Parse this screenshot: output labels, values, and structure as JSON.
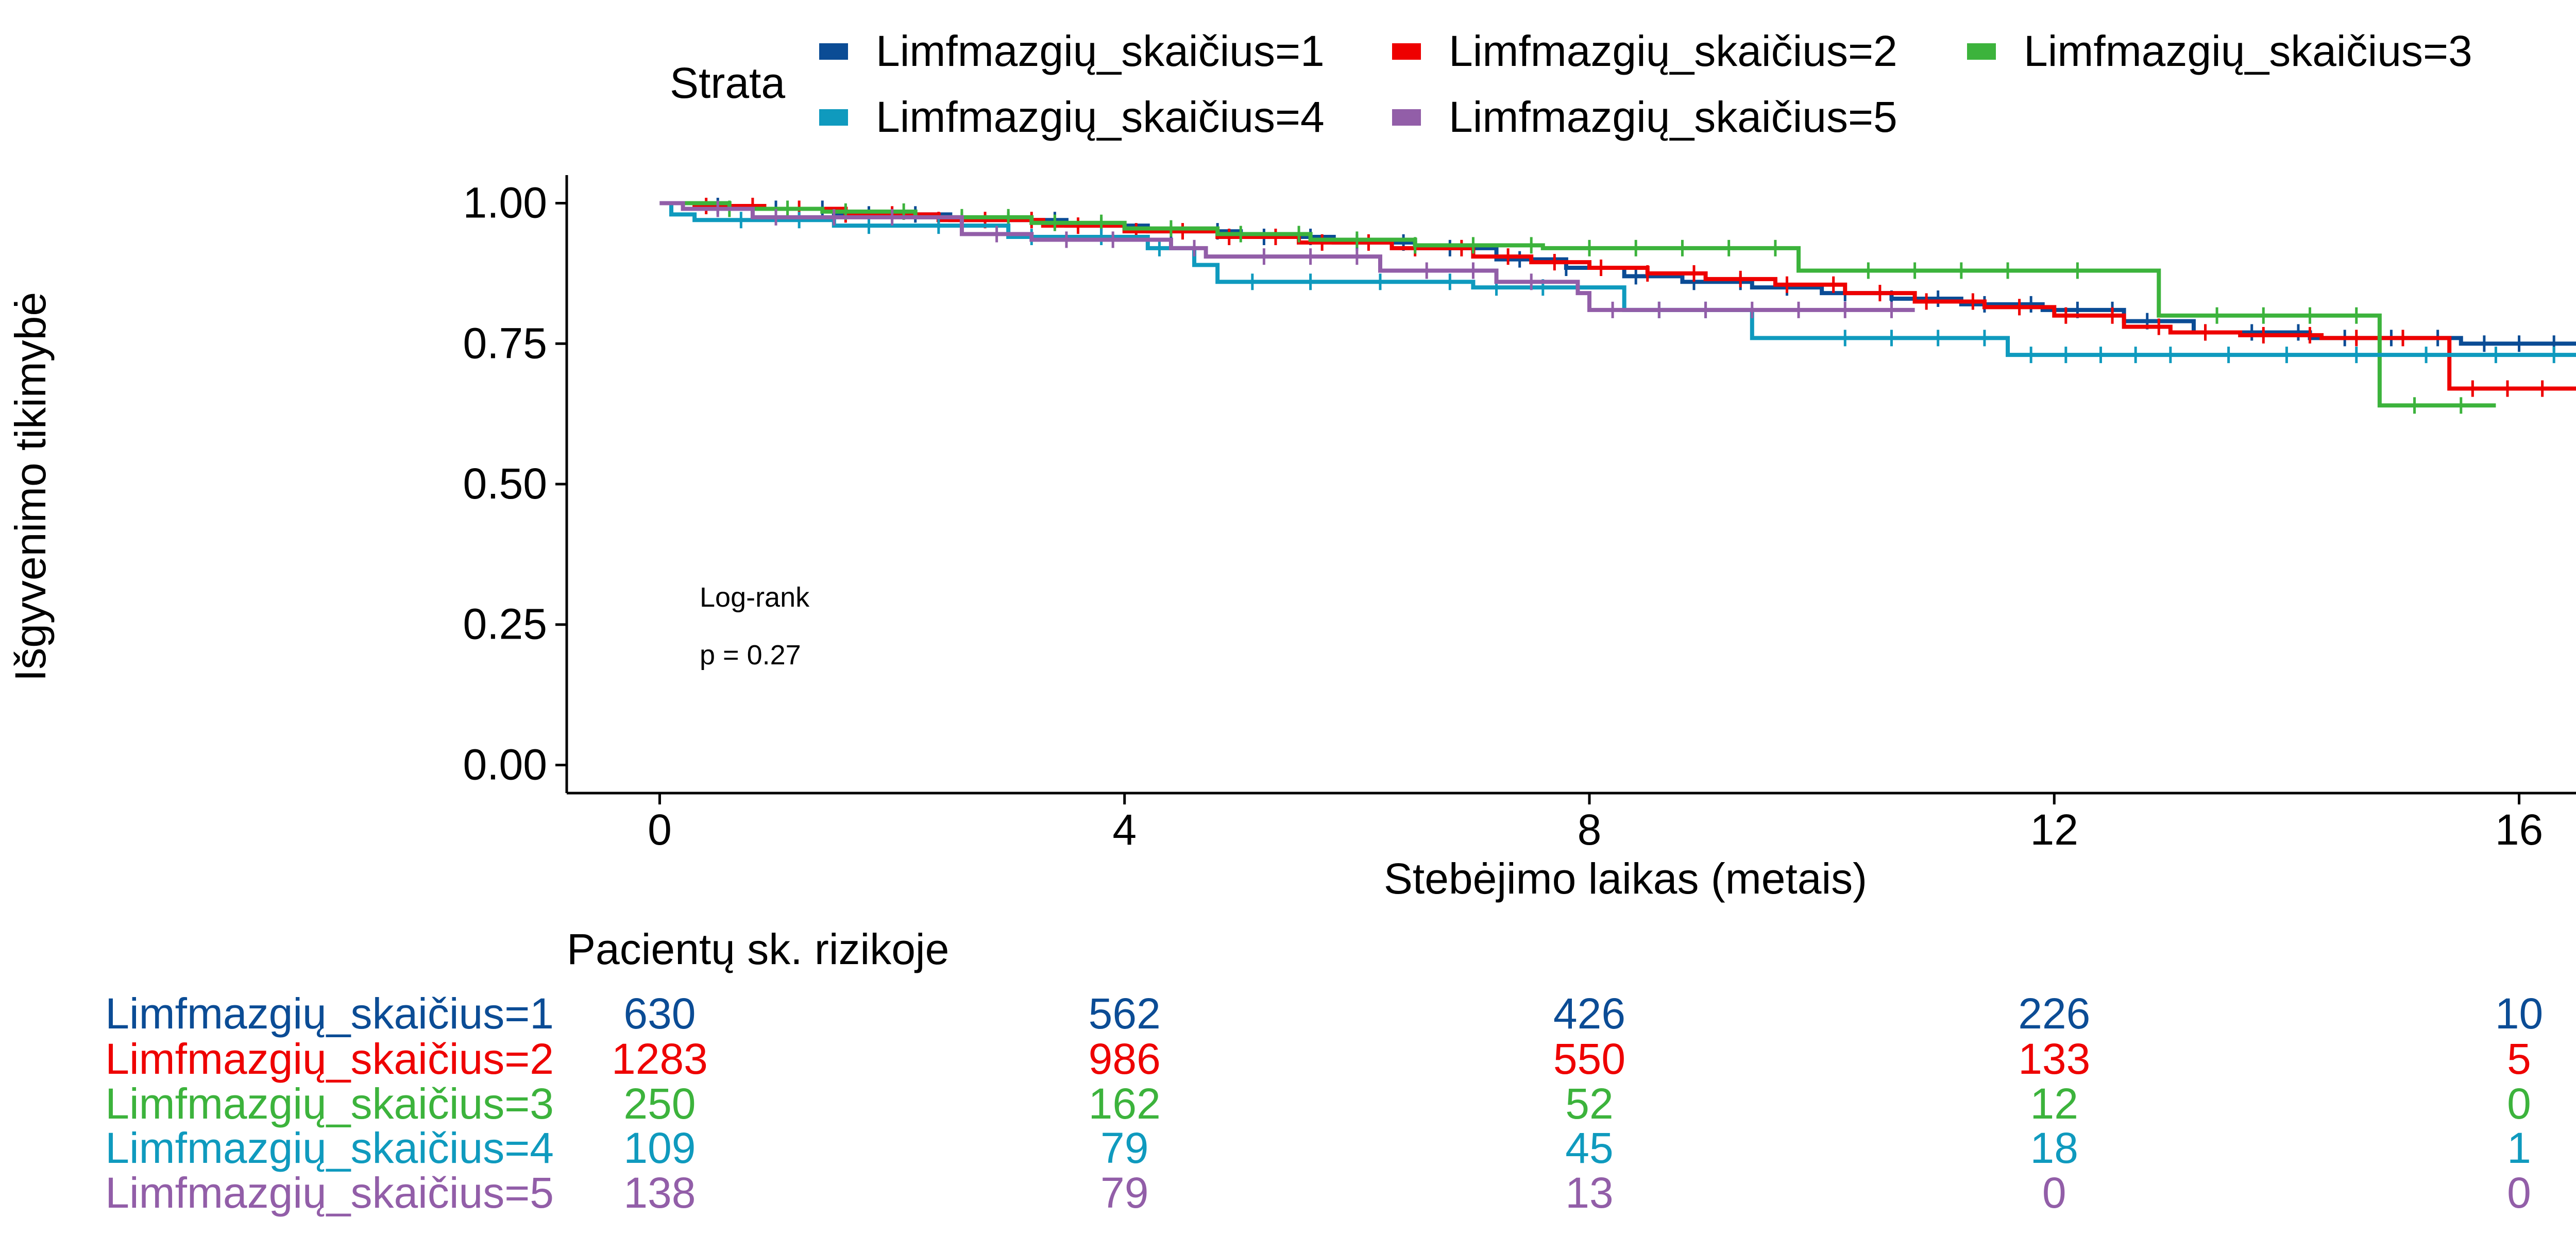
{
  "legend": {
    "title": "Strata",
    "position": "top"
  },
  "annotation": {
    "line1": "Log-rank",
    "line2": "p = 0.27"
  },
  "risk_table": {
    "title": "Pacientų sk. rizikoje",
    "times": [
      0,
      4,
      8,
      12,
      16
    ],
    "rows": [
      {
        "label": "Limfmazgių_skaičius=1",
        "color": "#0B4C95",
        "counts": [
          "630",
          "562",
          "426",
          "226",
          "10"
        ]
      },
      {
        "label": "Limfmazgių_skaičius=2",
        "color": "#EE0000",
        "counts": [
          "1283",
          "986",
          "550",
          "133",
          "5"
        ]
      },
      {
        "label": "Limfmazgių_skaičius=3",
        "color": "#3CB33C",
        "counts": [
          "250",
          "162",
          "52",
          "12",
          "0"
        ]
      },
      {
        "label": "Limfmazgių_skaičius=4",
        "color": "#0F9ABE",
        "counts": [
          "109",
          "79",
          "45",
          "18",
          "1"
        ]
      },
      {
        "label": "Limfmazgių_skaičius=5",
        "color": "#925EA8",
        "counts": [
          "138",
          "79",
          "13",
          "0",
          "0"
        ]
      }
    ]
  },
  "chart_data": {
    "type": "line",
    "subtype": "kaplan-meier step",
    "title": "",
    "xlabel": "Stebėjimo laikas (metais)",
    "ylabel": "Išgyvenimo tikimybė",
    "xlim": [
      -0.8,
      16.8
    ],
    "ylim": [
      -0.05,
      1.05
    ],
    "x_ticks": [
      0,
      4,
      8,
      12,
      16
    ],
    "y_ticks": [
      0.0,
      0.25,
      0.5,
      0.75,
      1.0
    ],
    "y_tick_labels": [
      "0.00",
      "0.25",
      "0.50",
      "0.75",
      "1.00"
    ],
    "grid": false,
    "series": [
      {
        "name": "Limfmazgių_skaičius=1",
        "color": "#0B4C95",
        "steps": [
          [
            0,
            1.0
          ],
          [
            0.4,
            0.995
          ],
          [
            0.8,
            0.99
          ],
          [
            1.5,
            0.98
          ],
          [
            2.5,
            0.97
          ],
          [
            3.5,
            0.96
          ],
          [
            4.2,
            0.95
          ],
          [
            5.0,
            0.94
          ],
          [
            5.8,
            0.93
          ],
          [
            6.5,
            0.92
          ],
          [
            7.2,
            0.9
          ],
          [
            7.8,
            0.885
          ],
          [
            8.3,
            0.87
          ],
          [
            8.8,
            0.86
          ],
          [
            9.4,
            0.85
          ],
          [
            10.0,
            0.84
          ],
          [
            10.6,
            0.83
          ],
          [
            11.2,
            0.82
          ],
          [
            11.9,
            0.81
          ],
          [
            12.6,
            0.79
          ],
          [
            13.2,
            0.77
          ],
          [
            14.2,
            0.76
          ],
          [
            15.5,
            0.75
          ],
          [
            16.8,
            0.75
          ]
        ],
        "censor_x": [
          0.5,
          1.0,
          1.4,
          1.8,
          2.2,
          2.6,
          3.0,
          3.4,
          3.8,
          4.4,
          4.8,
          5.2,
          5.6,
          6.0,
          6.4,
          6.8,
          7.4,
          7.8,
          8.4,
          8.9,
          9.3,
          9.7,
          10.2,
          10.6,
          11.0,
          11.4,
          11.8,
          12.2,
          12.5,
          12.8,
          13.3,
          13.7,
          14.1,
          14.5,
          14.9,
          15.3,
          15.7,
          16.0,
          16.3,
          16.6
        ]
      },
      {
        "name": "Limfmazgių_skaičius=2",
        "color": "#EE0000",
        "steps": [
          [
            0,
            1.0
          ],
          [
            0.3,
            0.995
          ],
          [
            0.9,
            0.99
          ],
          [
            1.6,
            0.98
          ],
          [
            2.4,
            0.97
          ],
          [
            3.3,
            0.96
          ],
          [
            4.0,
            0.95
          ],
          [
            4.8,
            0.94
          ],
          [
            5.5,
            0.93
          ],
          [
            6.3,
            0.92
          ],
          [
            7.0,
            0.905
          ],
          [
            7.5,
            0.895
          ],
          [
            8.0,
            0.885
          ],
          [
            8.5,
            0.875
          ],
          [
            9.0,
            0.865
          ],
          [
            9.6,
            0.855
          ],
          [
            10.2,
            0.84
          ],
          [
            10.8,
            0.825
          ],
          [
            11.4,
            0.815
          ],
          [
            12.0,
            0.8
          ],
          [
            12.6,
            0.78
          ],
          [
            13.0,
            0.77
          ],
          [
            13.6,
            0.765
          ],
          [
            14.3,
            0.76
          ],
          [
            15.4,
            0.67
          ],
          [
            16.8,
            0.67
          ]
        ],
        "censor_x": [
          0.4,
          0.8,
          1.2,
          1.6,
          2.0,
          2.4,
          2.8,
          3.2,
          3.6,
          4.1,
          4.5,
          4.9,
          5.3,
          5.7,
          6.1,
          6.5,
          6.9,
          7.3,
          7.7,
          8.1,
          8.5,
          8.9,
          9.3,
          9.7,
          10.1,
          10.5,
          10.9,
          11.3,
          11.7,
          12.1,
          12.5,
          12.9,
          13.3,
          13.8,
          14.2,
          14.6,
          15.0,
          15.6,
          15.9,
          16.2
        ]
      },
      {
        "name": "Limfmazgių_skaičius=3",
        "color": "#3CB33C",
        "steps": [
          [
            0,
            1.0
          ],
          [
            0.6,
            0.99
          ],
          [
            1.4,
            0.985
          ],
          [
            2.2,
            0.975
          ],
          [
            3.2,
            0.965
          ],
          [
            4.0,
            0.955
          ],
          [
            4.8,
            0.945
          ],
          [
            5.6,
            0.935
          ],
          [
            6.5,
            0.925
          ],
          [
            7.6,
            0.92
          ],
          [
            9.8,
            0.88
          ],
          [
            12.9,
            0.8
          ],
          [
            14.8,
            0.64
          ],
          [
            15.8,
            0.64
          ]
        ],
        "censor_x": [
          0.6,
          1.1,
          1.6,
          2.1,
          2.6,
          3.0,
          3.4,
          3.8,
          4.4,
          5.0,
          5.5,
          6.0,
          6.5,
          7.0,
          7.5,
          8.0,
          8.4,
          8.8,
          9.2,
          9.6,
          10.4,
          10.8,
          11.2,
          11.6,
          12.2,
          13.4,
          13.8,
          14.2,
          14.6,
          15.1,
          15.5
        ]
      },
      {
        "name": "Limfmazgių_skaičius=4",
        "color": "#0F9ABE",
        "steps": [
          [
            0,
            1.0
          ],
          [
            0.1,
            0.98
          ],
          [
            0.3,
            0.97
          ],
          [
            1.5,
            0.96
          ],
          [
            3.0,
            0.94
          ],
          [
            4.2,
            0.92
          ],
          [
            4.6,
            0.89
          ],
          [
            4.8,
            0.86
          ],
          [
            7.0,
            0.85
          ],
          [
            8.3,
            0.81
          ],
          [
            9.4,
            0.76
          ],
          [
            11.6,
            0.73
          ],
          [
            16.5,
            0.73
          ]
        ],
        "censor_x": [
          0.7,
          1.2,
          1.8,
          2.4,
          3.2,
          3.8,
          4.3,
          5.1,
          5.6,
          6.2,
          6.8,
          7.2,
          7.6,
          8.6,
          9.0,
          10.2,
          10.6,
          11.0,
          11.4,
          11.8,
          12.1,
          12.4,
          12.7,
          13.0,
          13.5,
          14.0,
          14.6,
          15.2,
          15.8,
          16.3
        ]
      },
      {
        "name": "Limfmazgių_skaičius=5",
        "color": "#925EA8",
        "steps": [
          [
            0,
            1.0
          ],
          [
            0.2,
            0.99
          ],
          [
            0.8,
            0.975
          ],
          [
            2.6,
            0.945
          ],
          [
            3.2,
            0.935
          ],
          [
            4.4,
            0.92
          ],
          [
            4.7,
            0.905
          ],
          [
            6.2,
            0.88
          ],
          [
            7.2,
            0.86
          ],
          [
            7.9,
            0.84
          ],
          [
            8.0,
            0.81
          ],
          [
            10.8,
            0.81
          ]
        ],
        "censor_x": [
          0.5,
          1.0,
          1.5,
          2.0,
          2.9,
          3.5,
          3.9,
          4.6,
          5.2,
          5.6,
          6.0,
          6.6,
          7.0,
          7.5,
          8.2,
          8.6,
          9.0,
          9.4,
          9.8,
          10.2,
          10.6
        ]
      }
    ]
  }
}
